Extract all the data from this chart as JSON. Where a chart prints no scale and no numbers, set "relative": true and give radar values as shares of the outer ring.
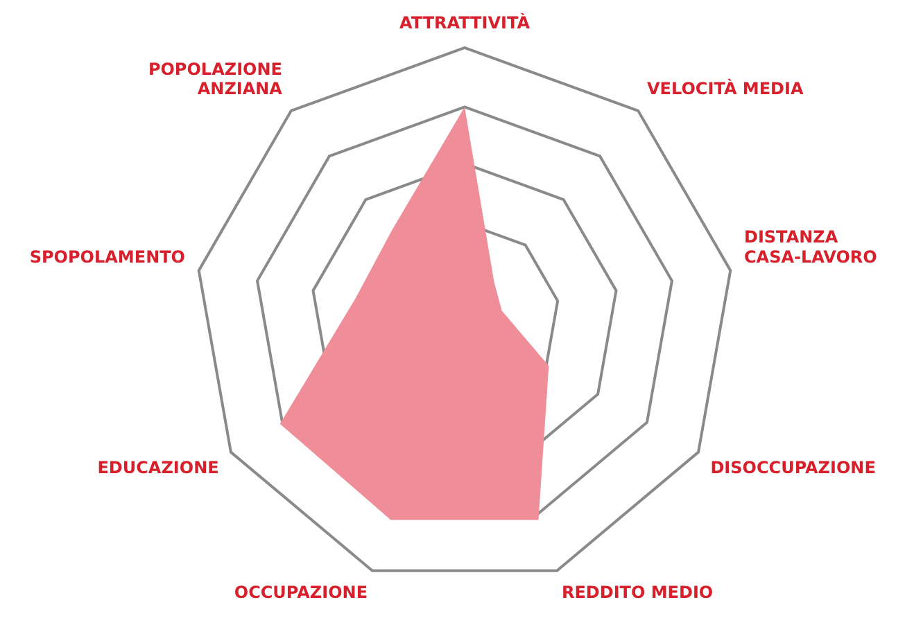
{
  "chart_data": {
    "type": "radar",
    "relative": true,
    "categories": [
      "ATTRATTIVITÀ",
      "VELOCITÀ MEDIA",
      "DISTANZA\nCASA-LAVORO",
      "DISOCCUPAZIONE",
      "REDDITO MEDIO",
      "OCCUPAZIONE",
      "EDUCAZIONE",
      "SPOPOLAMENTO",
      "POPOLAZIONE\nANZIANA"
    ],
    "series": [
      {
        "color": "#ef8e98",
        "values": [
          0.78,
          0.17,
          0.14,
          0.36,
          0.8,
          0.8,
          0.79,
          0.41,
          0.42
        ]
      }
    ],
    "grid": true,
    "legend": false,
    "marker": "none"
  }
}
